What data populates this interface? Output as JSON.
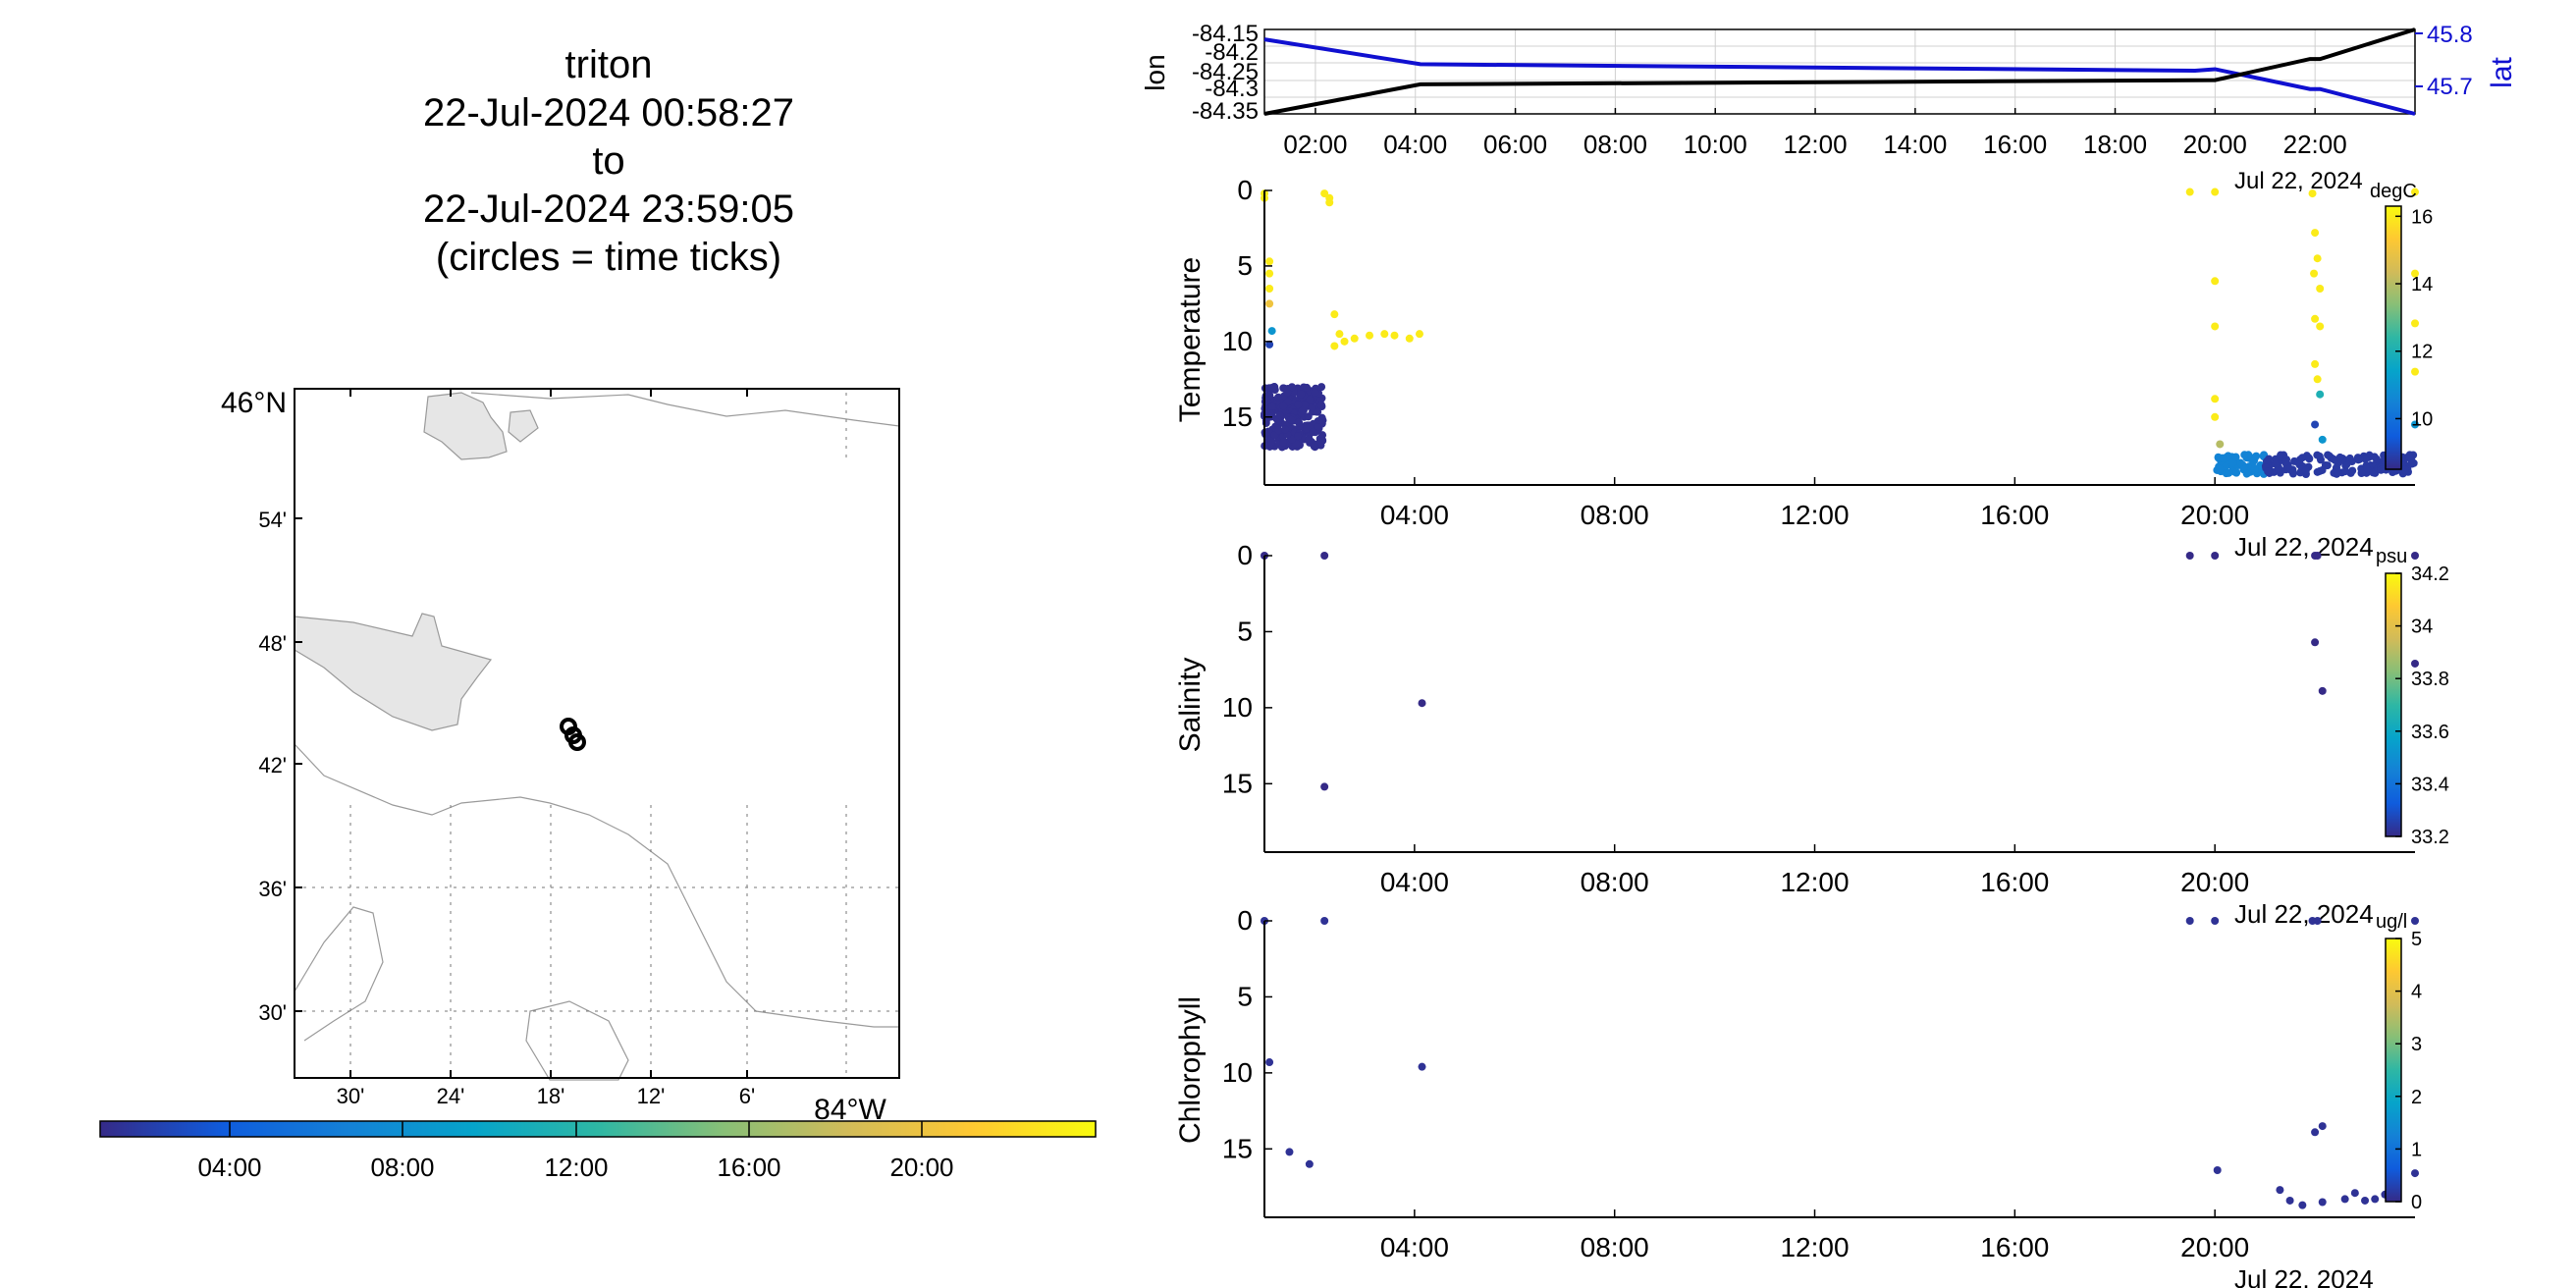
{
  "title": {
    "lines": [
      "triton",
      "22-Jul-2024 00:58:27",
      "to",
      "22-Jul-2024 23:59:05",
      "(circles = time ticks)"
    ]
  },
  "colors": {
    "axis": "#000000",
    "land": "#e6e6e6",
    "coast": "#9a9a9a",
    "lat_line": "#1010d0",
    "lon_line": "#000000",
    "grid": "#cccccc",
    "parula": [
      "#352a87",
      "#0f5cdd",
      "#1481d6",
      "#06a4ca",
      "#2eb7a4",
      "#87bf77",
      "#d1bb59",
      "#fec832",
      "#f9fb0e"
    ]
  },
  "map": {
    "lat_label": "46°N",
    "lon_label": "84°W",
    "lat_ticks": [
      "54'",
      "48'",
      "42'",
      "36'",
      "30'"
    ],
    "lon_ticks": [
      "30'",
      "24'",
      "18'",
      "12'",
      "6'"
    ],
    "track_note": "circles = time ticks"
  },
  "time_colorbar": {
    "ticks": [
      "04:00",
      "08:00",
      "12:00",
      "16:00",
      "20:00"
    ]
  },
  "chart_data": [
    {
      "type": "line",
      "panel": "position",
      "x_ticks": [
        "02:00",
        "04:00",
        "06:00",
        "08:00",
        "10:00",
        "12:00",
        "14:00",
        "16:00",
        "18:00",
        "20:00",
        "22:00"
      ],
      "date_label": "Jul 22, 2024",
      "ylabel_left": "lon",
      "ylabel_right": "lat",
      "left_ticks": [
        "-84.15",
        "-84.2",
        "-84.25",
        "-84.3",
        "-84.35"
      ],
      "right_ticks": [
        "45.8",
        "45.7"
      ],
      "ylim_left": [
        -84.35,
        -84.15
      ],
      "ylim_right": [
        45.65,
        45.82
      ],
      "xlim_hours": [
        0.98,
        24.0
      ],
      "series": [
        {
          "name": "lon",
          "x": [
            0.98,
            4.1,
            20.0,
            21.9,
            22.1,
            24.0
          ],
          "values": [
            -84.35,
            -84.28,
            -84.27,
            -84.22,
            -84.22,
            -84.15
          ]
        },
        {
          "name": "lat",
          "x": [
            0.98,
            4.1,
            19.6,
            20.0,
            21.9,
            22.1,
            24.0
          ],
          "values": [
            45.8,
            45.75,
            45.737,
            45.74,
            45.7,
            45.7,
            45.65
          ]
        }
      ]
    },
    {
      "type": "scatter",
      "panel": "temperature",
      "ylabel": "Temperature",
      "units": "degC",
      "y_ticks": [
        "0",
        "5",
        "10",
        "15"
      ],
      "ylim": [
        0,
        19.5
      ],
      "x_ticks": [
        "04:00",
        "08:00",
        "12:00",
        "16:00",
        "20:00"
      ],
      "date_label": "Jul 22, 2024",
      "colorbar_ticks": [
        "16",
        "14",
        "12",
        "10"
      ],
      "clim": [
        8.5,
        16.3
      ],
      "points": [
        [
          1.0,
          0.2,
          16
        ],
        [
          1.0,
          0.5,
          16
        ],
        [
          1.1,
          4.7,
          16
        ],
        [
          1.1,
          5.5,
          16
        ],
        [
          1.1,
          6.5,
          16
        ],
        [
          1.1,
          7.5,
          15
        ],
        [
          1.15,
          9.3,
          11
        ],
        [
          1.1,
          10.2,
          9
        ],
        [
          2.2,
          0.2,
          16
        ],
        [
          2.3,
          0.5,
          16
        ],
        [
          2.3,
          0.8,
          16
        ],
        [
          2.4,
          8.2,
          16
        ],
        [
          2.5,
          9.5,
          16
        ],
        [
          2.4,
          10.3,
          16
        ],
        [
          2.6,
          10.0,
          16
        ],
        [
          2.8,
          9.8,
          16
        ],
        [
          3.1,
          9.6,
          16
        ],
        [
          3.4,
          9.5,
          16
        ],
        [
          3.6,
          9.6,
          16
        ],
        [
          3.9,
          9.8,
          16
        ],
        [
          4.1,
          9.5,
          16
        ],
        [
          19.5,
          0.1,
          16
        ],
        [
          20.0,
          0.1,
          16
        ],
        [
          20.0,
          6.0,
          16
        ],
        [
          20.0,
          9.0,
          16
        ],
        [
          20.0,
          13.8,
          16
        ],
        [
          20.0,
          15.0,
          16
        ],
        [
          20.1,
          16.8,
          14
        ],
        [
          21.95,
          0.2,
          16
        ],
        [
          22.0,
          2.8,
          16
        ],
        [
          22.05,
          4.5,
          16
        ],
        [
          21.98,
          5.5,
          16
        ],
        [
          22.1,
          6.5,
          16
        ],
        [
          22.0,
          8.5,
          16
        ],
        [
          22.1,
          9.0,
          16
        ],
        [
          22.0,
          11.5,
          16
        ],
        [
          22.05,
          12.5,
          16
        ],
        [
          22.1,
          13.5,
          12
        ],
        [
          22.0,
          15.5,
          9
        ],
        [
          22.15,
          16.5,
          11
        ],
        [
          24.0,
          0.1,
          16
        ],
        [
          24.0,
          5.5,
          16
        ],
        [
          24.0,
          8.8,
          16
        ],
        [
          24.0,
          12.0,
          16
        ],
        [
          24.0,
          15.5,
          11
        ]
      ],
      "clusters": [
        {
          "x_range": [
            1.0,
            2.2
          ],
          "y_range": [
            13.0,
            17.0
          ],
          "value": 8.6,
          "count": 260
        },
        {
          "x_range": [
            20.0,
            21.0
          ],
          "y_range": [
            17.5,
            18.8
          ],
          "value": 10.5,
          "count": 70
        },
        {
          "x_range": [
            21.0,
            24.0
          ],
          "y_range": [
            17.5,
            18.8
          ],
          "value": 8.8,
          "count": 150
        }
      ]
    },
    {
      "type": "scatter",
      "panel": "salinity",
      "ylabel": "Salinity",
      "units": "psu",
      "y_ticks": [
        "0",
        "5",
        "10",
        "15"
      ],
      "ylim": [
        0,
        19.5
      ],
      "x_ticks": [
        "04:00",
        "08:00",
        "12:00",
        "16:00",
        "20:00"
      ],
      "date_label": "Jul 22, 2024",
      "colorbar_ticks": [
        "34.2",
        "34",
        "33.8",
        "33.6",
        "33.4",
        "33.2"
      ],
      "clim": [
        33.2,
        34.2
      ],
      "points": [
        [
          1.0,
          0.0,
          33.2
        ],
        [
          2.2,
          0.0,
          33.2
        ],
        [
          2.2,
          15.2,
          33.2
        ],
        [
          4.15,
          9.7,
          33.2
        ],
        [
          19.5,
          0.0,
          33.2
        ],
        [
          20.0,
          0.0,
          33.2
        ],
        [
          22.0,
          0.0,
          33.2
        ],
        [
          22.05,
          0.0,
          33.2
        ],
        [
          22.0,
          5.7,
          33.2
        ],
        [
          22.15,
          8.9,
          33.2
        ],
        [
          24.0,
          0.0,
          33.2
        ],
        [
          24.0,
          7.1,
          33.2
        ]
      ]
    },
    {
      "type": "scatter",
      "panel": "chlorophyll",
      "ylabel": "Chlorophyll",
      "units": "ug/l",
      "y_ticks": [
        "0",
        "5",
        "10",
        "15"
      ],
      "ylim": [
        0,
        19.5
      ],
      "x_ticks": [
        "04:00",
        "08:00",
        "12:00",
        "16:00",
        "20:00"
      ],
      "date_label": "Jul 22, 2024",
      "colorbar_ticks": [
        "5",
        "4",
        "3",
        "2",
        "1",
        "0"
      ],
      "clim": [
        0,
        5
      ],
      "points": [
        [
          1.0,
          0.0,
          0.1
        ],
        [
          1.1,
          9.3,
          0.1
        ],
        [
          1.5,
          15.2,
          0.1
        ],
        [
          1.9,
          16.0,
          0.1
        ],
        [
          2.2,
          0.0,
          0.1
        ],
        [
          4.15,
          9.6,
          0.1
        ],
        [
          19.5,
          0.0,
          0.1
        ],
        [
          20.0,
          0.0,
          0.1
        ],
        [
          20.05,
          16.4,
          0.1
        ],
        [
          21.3,
          17.7,
          0.1
        ],
        [
          21.5,
          18.4,
          0.1
        ],
        [
          21.75,
          18.7,
          0.1
        ],
        [
          21.95,
          0.0,
          0.1
        ],
        [
          22.05,
          0.0,
          0.1
        ],
        [
          22.0,
          13.9,
          0.1
        ],
        [
          22.15,
          13.5,
          0.1
        ],
        [
          22.15,
          18.5,
          0.1
        ],
        [
          22.6,
          18.3,
          0.1
        ],
        [
          22.8,
          17.9,
          0.1
        ],
        [
          23.0,
          18.4,
          0.1
        ],
        [
          23.2,
          18.3,
          0.1
        ],
        [
          23.4,
          18.0,
          0.1
        ],
        [
          23.6,
          17.8,
          0.1
        ],
        [
          24.0,
          0.0,
          0.1
        ],
        [
          24.0,
          16.6,
          0.1
        ]
      ]
    }
  ]
}
